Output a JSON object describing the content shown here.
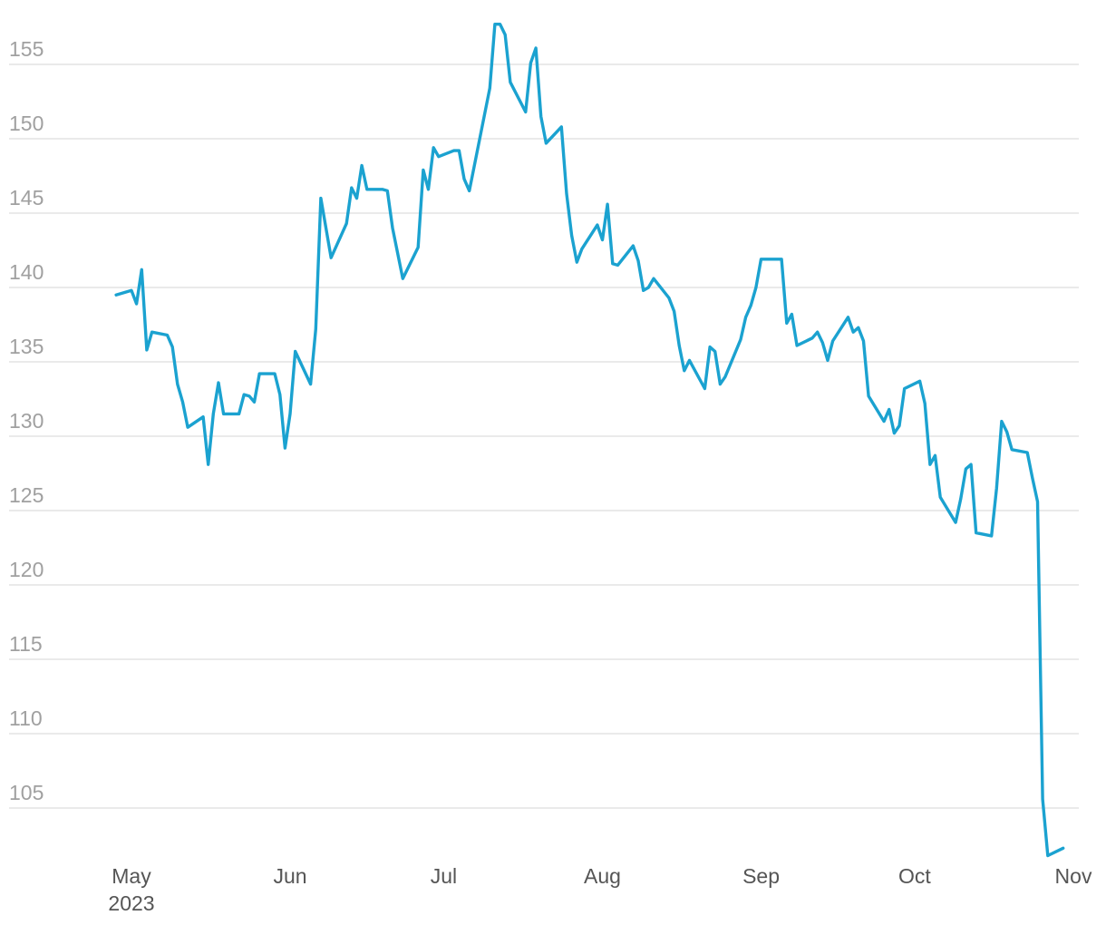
{
  "chart_data": {
    "type": "line",
    "title": "",
    "xlabel": "",
    "ylabel": "",
    "grid": "horizontal",
    "legend": "none",
    "color": "#1ba2d0",
    "ylim": [
      101.5,
      158
    ],
    "yticks": [
      105,
      110,
      115,
      120,
      125,
      130,
      135,
      140,
      145,
      150,
      155
    ],
    "xlim": [
      "2023-04-26",
      "2023-11-01"
    ],
    "xticks": [
      {
        "date": "2023-05-01",
        "label": "May",
        "sublabel": "2023"
      },
      {
        "date": "2023-06-01",
        "label": "Jun",
        "sublabel": ""
      },
      {
        "date": "2023-07-01",
        "label": "Jul",
        "sublabel": ""
      },
      {
        "date": "2023-08-01",
        "label": "Aug",
        "sublabel": ""
      },
      {
        "date": "2023-09-01",
        "label": "Sep",
        "sublabel": ""
      },
      {
        "date": "2023-10-01",
        "label": "Oct",
        "sublabel": ""
      },
      {
        "date": "2023-11-01",
        "label": "Nov",
        "sublabel": ""
      }
    ],
    "series": [
      {
        "points": [
          [
            "2023-04-28",
            139.5
          ],
          [
            "2023-05-01",
            139.8
          ],
          [
            "2023-05-02",
            138.9
          ],
          [
            "2023-05-03",
            141.2
          ],
          [
            "2023-05-04",
            135.8
          ],
          [
            "2023-05-05",
            137.0
          ],
          [
            "2023-05-08",
            136.8
          ],
          [
            "2023-05-09",
            136.0
          ],
          [
            "2023-05-10",
            133.5
          ],
          [
            "2023-05-11",
            132.3
          ],
          [
            "2023-05-12",
            130.6
          ],
          [
            "2023-05-15",
            131.3
          ],
          [
            "2023-05-16",
            128.1
          ],
          [
            "2023-05-17",
            131.5
          ],
          [
            "2023-05-18",
            133.6
          ],
          [
            "2023-05-19",
            131.5
          ],
          [
            "2023-05-22",
            131.5
          ],
          [
            "2023-05-23",
            132.8
          ],
          [
            "2023-05-24",
            132.7
          ],
          [
            "2023-05-25",
            132.3
          ],
          [
            "2023-05-26",
            134.2
          ],
          [
            "2023-05-29",
            134.2
          ],
          [
            "2023-05-30",
            132.8
          ],
          [
            "2023-05-31",
            129.2
          ],
          [
            "2023-06-01",
            131.5
          ],
          [
            "2023-06-02",
            135.7
          ],
          [
            "2023-06-05",
            133.5
          ],
          [
            "2023-06-06",
            137.2
          ],
          [
            "2023-06-07",
            146.0
          ],
          [
            "2023-06-09",
            142.0
          ],
          [
            "2023-06-12",
            144.3
          ],
          [
            "2023-06-13",
            146.7
          ],
          [
            "2023-06-14",
            146.0
          ],
          [
            "2023-06-15",
            148.2
          ],
          [
            "2023-06-16",
            146.6
          ],
          [
            "2023-06-19",
            146.6
          ],
          [
            "2023-06-20",
            146.5
          ],
          [
            "2023-06-21",
            144.0
          ],
          [
            "2023-06-23",
            140.6
          ],
          [
            "2023-06-26",
            142.7
          ],
          [
            "2023-06-27",
            147.9
          ],
          [
            "2023-06-28",
            146.6
          ],
          [
            "2023-06-29",
            149.4
          ],
          [
            "2023-06-30",
            148.8
          ],
          [
            "2023-07-03",
            149.2
          ],
          [
            "2023-07-04",
            149.2
          ],
          [
            "2023-07-05",
            147.3
          ],
          [
            "2023-07-06",
            146.5
          ],
          [
            "2023-07-10",
            153.4
          ],
          [
            "2023-07-11",
            157.7
          ],
          [
            "2023-07-12",
            157.7
          ],
          [
            "2023-07-13",
            157.0
          ],
          [
            "2023-07-14",
            153.8
          ],
          [
            "2023-07-17",
            151.8
          ],
          [
            "2023-07-18",
            155.1
          ],
          [
            "2023-07-19",
            156.1
          ],
          [
            "2023-07-20",
            151.5
          ],
          [
            "2023-07-21",
            149.7
          ],
          [
            "2023-07-24",
            150.8
          ],
          [
            "2023-07-25",
            146.3
          ],
          [
            "2023-07-26",
            143.5
          ],
          [
            "2023-07-27",
            141.7
          ],
          [
            "2023-07-28",
            142.6
          ],
          [
            "2023-07-31",
            144.2
          ],
          [
            "2023-08-01",
            143.2
          ],
          [
            "2023-08-02",
            145.6
          ],
          [
            "2023-08-03",
            141.6
          ],
          [
            "2023-08-04",
            141.5
          ],
          [
            "2023-08-07",
            142.8
          ],
          [
            "2023-08-08",
            141.8
          ],
          [
            "2023-08-09",
            139.8
          ],
          [
            "2023-08-10",
            140.0
          ],
          [
            "2023-08-11",
            140.6
          ],
          [
            "2023-08-14",
            139.3
          ],
          [
            "2023-08-15",
            138.4
          ],
          [
            "2023-08-16",
            136.1
          ],
          [
            "2023-08-17",
            134.4
          ],
          [
            "2023-08-18",
            135.1
          ],
          [
            "2023-08-21",
            133.2
          ],
          [
            "2023-08-22",
            136.0
          ],
          [
            "2023-08-23",
            135.7
          ],
          [
            "2023-08-24",
            133.5
          ],
          [
            "2023-08-25",
            134.0
          ],
          [
            "2023-08-28",
            136.5
          ],
          [
            "2023-08-29",
            138.0
          ],
          [
            "2023-08-30",
            138.8
          ],
          [
            "2023-08-31",
            140.0
          ],
          [
            "2023-09-01",
            141.9
          ],
          [
            "2023-09-05",
            141.9
          ],
          [
            "2023-09-06",
            137.6
          ],
          [
            "2023-09-07",
            138.2
          ],
          [
            "2023-09-08",
            136.1
          ],
          [
            "2023-09-11",
            136.6
          ],
          [
            "2023-09-12",
            137.0
          ],
          [
            "2023-09-13",
            136.3
          ],
          [
            "2023-09-14",
            135.1
          ],
          [
            "2023-09-15",
            136.4
          ],
          [
            "2023-09-18",
            138.0
          ],
          [
            "2023-09-19",
            137.0
          ],
          [
            "2023-09-20",
            137.3
          ],
          [
            "2023-09-21",
            136.4
          ],
          [
            "2023-09-22",
            132.7
          ],
          [
            "2023-09-25",
            131.0
          ],
          [
            "2023-09-26",
            131.8
          ],
          [
            "2023-09-27",
            130.2
          ],
          [
            "2023-09-28",
            130.7
          ],
          [
            "2023-09-29",
            133.2
          ],
          [
            "2023-10-02",
            133.7
          ],
          [
            "2023-10-03",
            132.2
          ],
          [
            "2023-10-04",
            128.1
          ],
          [
            "2023-10-05",
            128.7
          ],
          [
            "2023-10-06",
            125.9
          ],
          [
            "2023-10-09",
            124.2
          ],
          [
            "2023-10-10",
            125.8
          ],
          [
            "2023-10-11",
            127.8
          ],
          [
            "2023-10-12",
            128.1
          ],
          [
            "2023-10-13",
            123.5
          ],
          [
            "2023-10-16",
            123.3
          ],
          [
            "2023-10-17",
            126.5
          ],
          [
            "2023-10-18",
            131.0
          ],
          [
            "2023-10-19",
            130.3
          ],
          [
            "2023-10-20",
            129.1
          ],
          [
            "2023-10-23",
            128.9
          ],
          [
            "2023-10-24",
            127.2
          ],
          [
            "2023-10-25",
            125.6
          ],
          [
            "2023-10-26",
            105.6
          ],
          [
            "2023-10-27",
            101.8
          ],
          [
            "2023-10-30",
            102.3
          ]
        ]
      }
    ]
  }
}
